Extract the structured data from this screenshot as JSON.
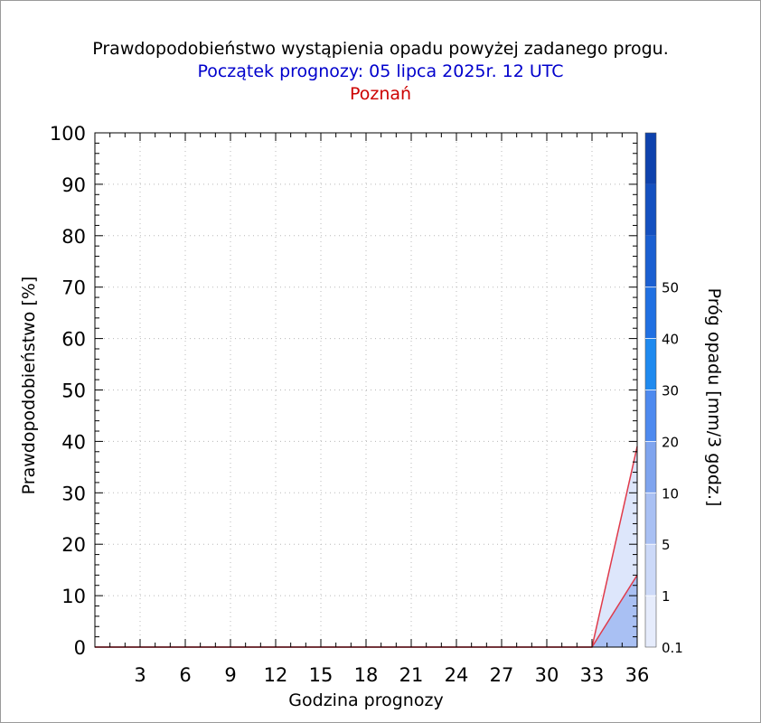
{
  "header": {
    "title": "Prawdopodobieństwo wystąpienia opadu powyżej zadanego progu.",
    "subtitle": "Początek prognozy: 05 lipca 2025r. 12 UTC",
    "location": "Poznań"
  },
  "chart_data": {
    "type": "area",
    "xlabel": "Godzina prognozy",
    "ylabel": "Prawdopodobieństwo [%]",
    "xlim": [
      0,
      36
    ],
    "ylim": [
      0,
      100
    ],
    "x_ticks": [
      3,
      6,
      9,
      12,
      15,
      18,
      21,
      24,
      27,
      30,
      33,
      36
    ],
    "y_ticks": [
      0,
      10,
      20,
      30,
      40,
      50,
      60,
      70,
      80,
      90,
      100
    ],
    "grid": true,
    "x": [
      0,
      3,
      6,
      9,
      12,
      15,
      18,
      21,
      24,
      27,
      30,
      33,
      36
    ],
    "series": [
      {
        "name": "0.1",
        "color": "#dde6fb",
        "values": [
          0,
          0,
          0,
          0,
          0,
          0,
          0,
          0,
          0,
          0,
          0,
          0,
          39
        ]
      },
      {
        "name": "1",
        "color": "#a9c0f3",
        "values": [
          0,
          0,
          0,
          0,
          0,
          0,
          0,
          0,
          0,
          0,
          0,
          0,
          14
        ]
      }
    ],
    "line_color": "#e03a4a",
    "colorbar": {
      "label": "Próg opadu [mm/3 godz.]",
      "tick_labels": [
        "0.1",
        "1",
        "5",
        "10",
        "20",
        "30",
        "40",
        "50"
      ],
      "colors": [
        "#e6ecfc",
        "#ccd9f8",
        "#a9c0f3",
        "#7fa4ee",
        "#4e8aef",
        "#1f8aef",
        "#2070e2",
        "#1a5fd1",
        "#1450c0",
        "#0e42ad"
      ]
    }
  }
}
